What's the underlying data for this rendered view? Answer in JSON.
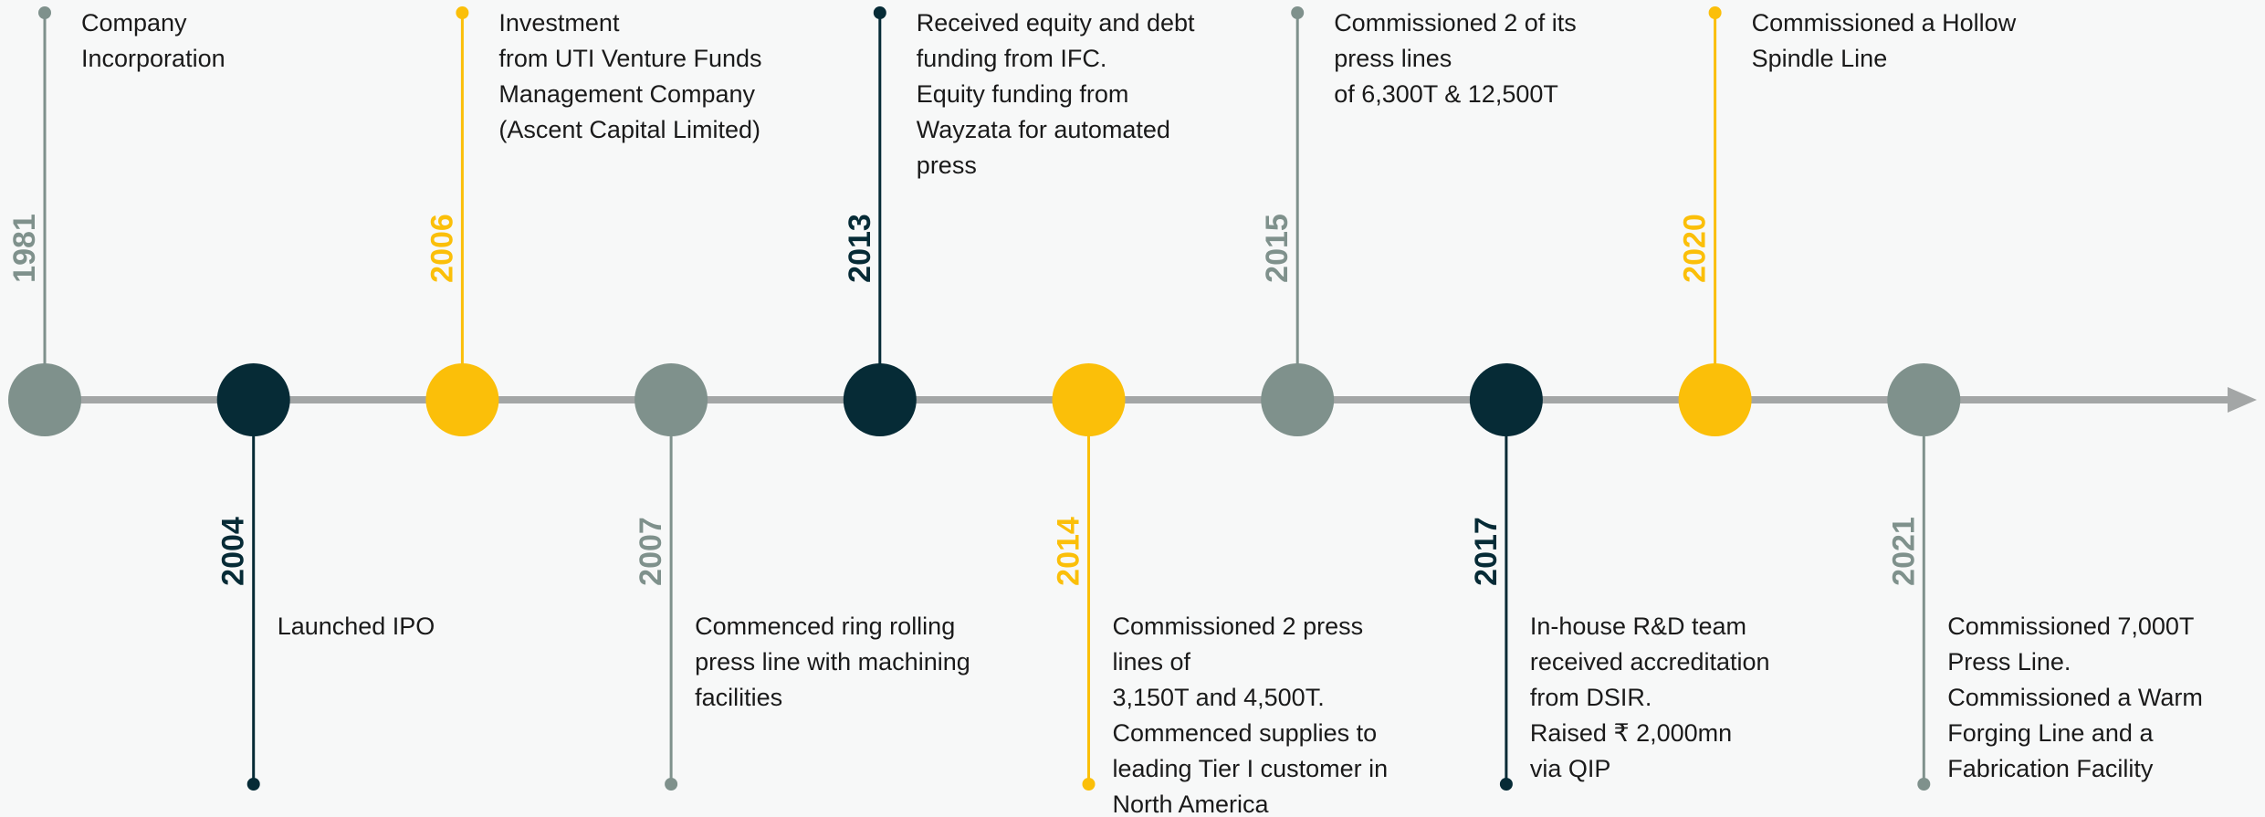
{
  "events": [
    {
      "year": "1981",
      "lines": [
        "Company",
        "Incorporation"
      ]
    },
    {
      "year": "2004",
      "lines": [
        "Launched IPO"
      ]
    },
    {
      "year": "2006",
      "lines": [
        "Investment",
        "from UTI Venture Funds",
        "Management Company",
        "(Ascent Capital Limited)"
      ]
    },
    {
      "year": "2007",
      "lines": [
        "Commenced ring rolling",
        "press line with machining",
        "facilities"
      ]
    },
    {
      "year": "2013",
      "lines": [
        "Received equity and debt",
        "funding from IFC.",
        "Equity funding from",
        "Wayzata for automated",
        "press"
      ]
    },
    {
      "year": "2014",
      "lines": [
        "Commissioned 2 press",
        "lines of",
        "3,150T and 4,500T.",
        "Commenced supplies to",
        "leading Tier I customer in",
        "North America"
      ]
    },
    {
      "year": "2015",
      "lines": [
        "Commissioned 2 of its",
        "press lines",
        "of 6,300T & 12,500T"
      ]
    },
    {
      "year": "2017",
      "lines": [
        "In-house R&D team",
        "received accreditation",
        "from DSIR.",
        "Raised ₹ 2,000mn",
        "via QIP"
      ]
    },
    {
      "year": "2020",
      "lines": [
        "Commissioned a Hollow",
        "Spindle Line"
      ]
    },
    {
      "year": "2021",
      "lines": [
        "Commissioned 7,000T",
        "Press Line.",
        "Commissioned a Warm",
        "Forging Line and a",
        "Fabrication Facility"
      ]
    }
  ]
}
